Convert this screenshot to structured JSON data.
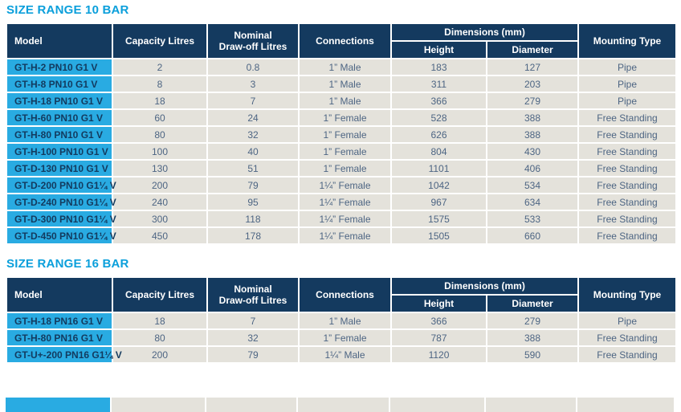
{
  "colors": {
    "title_blue": "#0a9fdb",
    "header_navy": "#143a5f",
    "model_cell_cyan": "#29abe2",
    "model_text_navy": "#133a5e",
    "value_cell_gray": "#e4e2db",
    "value_text_slate": "#4d6583"
  },
  "tables": [
    {
      "title": "SIZE RANGE 10 BAR",
      "headers": {
        "model": "Model",
        "capacity": "Capacity Litres",
        "nominal": "Nominal\nDraw-off Litres",
        "connections": "Connections",
        "dimensions": "Dimensions (mm)",
        "height": "Height",
        "diameter": "Diameter",
        "mounting": "Mounting Type"
      },
      "rows": [
        [
          "GT-H-2 PN10 G1 V",
          2,
          0.8,
          "1” Male",
          183,
          127,
          "Pipe"
        ],
        [
          "GT-H-8 PN10 G1 V",
          8,
          3,
          "1” Male",
          311,
          203,
          "Pipe"
        ],
        [
          "GT-H-18 PN10 G1 V",
          18,
          7,
          "1” Male",
          366,
          279,
          "Pipe"
        ],
        [
          "GT-H-60 PN10 G1 V",
          60,
          24,
          "1” Female",
          528,
          388,
          "Free Standing"
        ],
        [
          "GT-H-80 PN10 G1 V",
          80,
          32,
          "1” Female",
          626,
          388,
          "Free Standing"
        ],
        [
          "GT-H-100 PN10 G1 V",
          100,
          40,
          "1” Female",
          804,
          430,
          "Free Standing"
        ],
        [
          "GT-D-130 PN10 G1 V",
          130,
          51,
          "1” Female",
          1101,
          406,
          "Free Standing"
        ],
        [
          "GT-D-200 PN10 G1¼ V",
          200,
          79,
          "1¼” Female",
          1042,
          534,
          "Free Standing"
        ],
        [
          "GT-D-240 PN10 G1¼ V",
          240,
          95,
          "1¼” Female",
          967,
          634,
          "Free Standing"
        ],
        [
          "GT-D-300 PN10 G1¼ V",
          300,
          118,
          "1¼” Female",
          1575,
          533,
          "Free Standing"
        ],
        [
          "GT-D-450 PN10 G1¼ V",
          450,
          178,
          "1¼” Female",
          1505,
          660,
          "Free Standing"
        ]
      ]
    },
    {
      "title": "SIZE RANGE 16 BAR",
      "headers": {
        "model": "Model",
        "capacity": "Capacity Litres",
        "nominal": "Nominal\nDraw-off Litres",
        "connections": "Connections",
        "dimensions": "Dimensions (mm)",
        "height": "Height",
        "diameter": "Diameter",
        "mounting": "Mounting Type"
      },
      "rows": [
        [
          "GT-H-18 PN16 G1 V",
          18,
          7,
          "1” Male",
          366,
          279,
          "Pipe"
        ],
        [
          "GT-H-80 PN16 G1 V",
          80,
          32,
          "1” Female",
          787,
          388,
          "Free Standing"
        ],
        [
          "GT-U+-200 PN16 G1¼ V",
          200,
          79,
          "1¼” Male",
          1120,
          590,
          "Free Standing"
        ]
      ]
    }
  ]
}
